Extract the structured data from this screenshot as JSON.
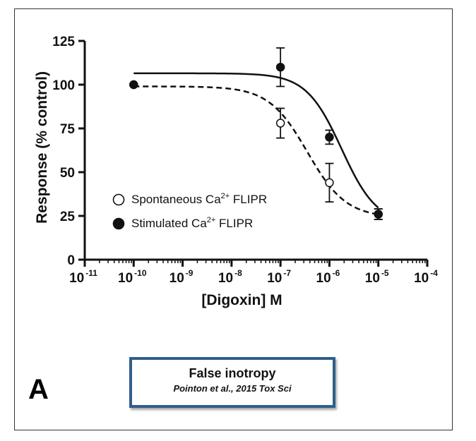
{
  "panel_label": "A",
  "citation": {
    "title": "False inotropy",
    "reference": "Pointon et al., 2015 Tox Sci"
  },
  "colors": {
    "axis": "#111111",
    "series": "#111111",
    "citation_border": "#2f5f8a"
  },
  "chart_data": {
    "type": "scatter",
    "xlabel": "[Digoxin] M",
    "ylabel": "Response (% control)",
    "xscale": "log",
    "xlim": [
      1e-11,
      0.0001
    ],
    "ylim": [
      0,
      125
    ],
    "x_ticks": [
      {
        "base": "10",
        "exp": "-11",
        "value": 1e-11
      },
      {
        "base": "10",
        "exp": "-10",
        "value": 1e-10
      },
      {
        "base": "10",
        "exp": "-9",
        "value": 1e-09
      },
      {
        "base": "10",
        "exp": "-8",
        "value": 1e-08
      },
      {
        "base": "10",
        "exp": "-7",
        "value": 1e-07
      },
      {
        "base": "10",
        "exp": "-6",
        "value": 1e-06
      },
      {
        "base": "10",
        "exp": "-5",
        "value": 1e-05
      },
      {
        "base": "10",
        "exp": "-4",
        "value": 0.0001
      }
    ],
    "y_ticks": [
      "0",
      "25",
      "50",
      "75",
      "100",
      "125"
    ],
    "grid": false,
    "legend_position": "lower-left",
    "series": [
      {
        "name_main": "Spontaneous Ca",
        "name_sup": "2+",
        "name_tail": " FLIPR",
        "marker": "open-circle",
        "line": "dashed",
        "points": [
          {
            "x": 1e-10,
            "y": 100,
            "err": 0
          },
          {
            "x": 1e-07,
            "y": 78,
            "err": 8.5
          },
          {
            "x": 1e-06,
            "y": 44,
            "err": 11
          },
          {
            "x": 1e-05,
            "y": 26,
            "err": 3
          }
        ],
        "fit": {
          "top": 99,
          "bottom": 24,
          "log_ec50": -6.45,
          "hill": 1.1
        }
      },
      {
        "name_main": "Stimulated Ca",
        "name_sup": "2+",
        "name_tail": " FLIPR",
        "marker": "filled-circle",
        "line": "solid",
        "points": [
          {
            "x": 1e-10,
            "y": 100,
            "err": 0
          },
          {
            "x": 1e-07,
            "y": 110,
            "err": 11
          },
          {
            "x": 1e-06,
            "y": 70,
            "err": 4
          },
          {
            "x": 1e-05,
            "y": 26,
            "err": 3
          }
        ],
        "fit": {
          "top": 106.5,
          "bottom": 20,
          "log_ec50": -5.75,
          "hill": 1.2
        }
      }
    ]
  }
}
